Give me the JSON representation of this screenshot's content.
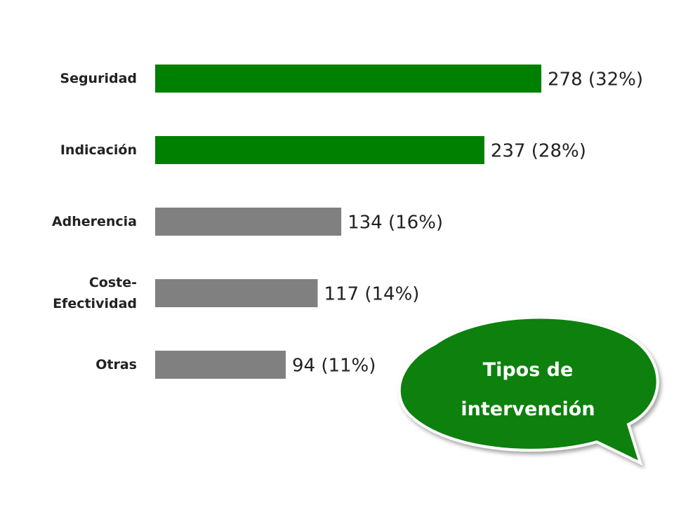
{
  "chart_data": {
    "type": "bar",
    "orientation": "horizontal",
    "title": "Tipos de intervención",
    "categories": [
      "Seguridad",
      "Indicación",
      "Adherencia",
      "Coste-Efectividad",
      "Otras"
    ],
    "values": [
      278,
      237,
      134,
      117,
      94
    ],
    "value_labels": [
      "278 (32%)",
      "237 (28%)",
      "134 (16%)",
      "117 (14%)",
      "94 (11%)"
    ],
    "colors": [
      "#008000",
      "#008000",
      "#808080",
      "#808080",
      "#808080"
    ]
  }
}
